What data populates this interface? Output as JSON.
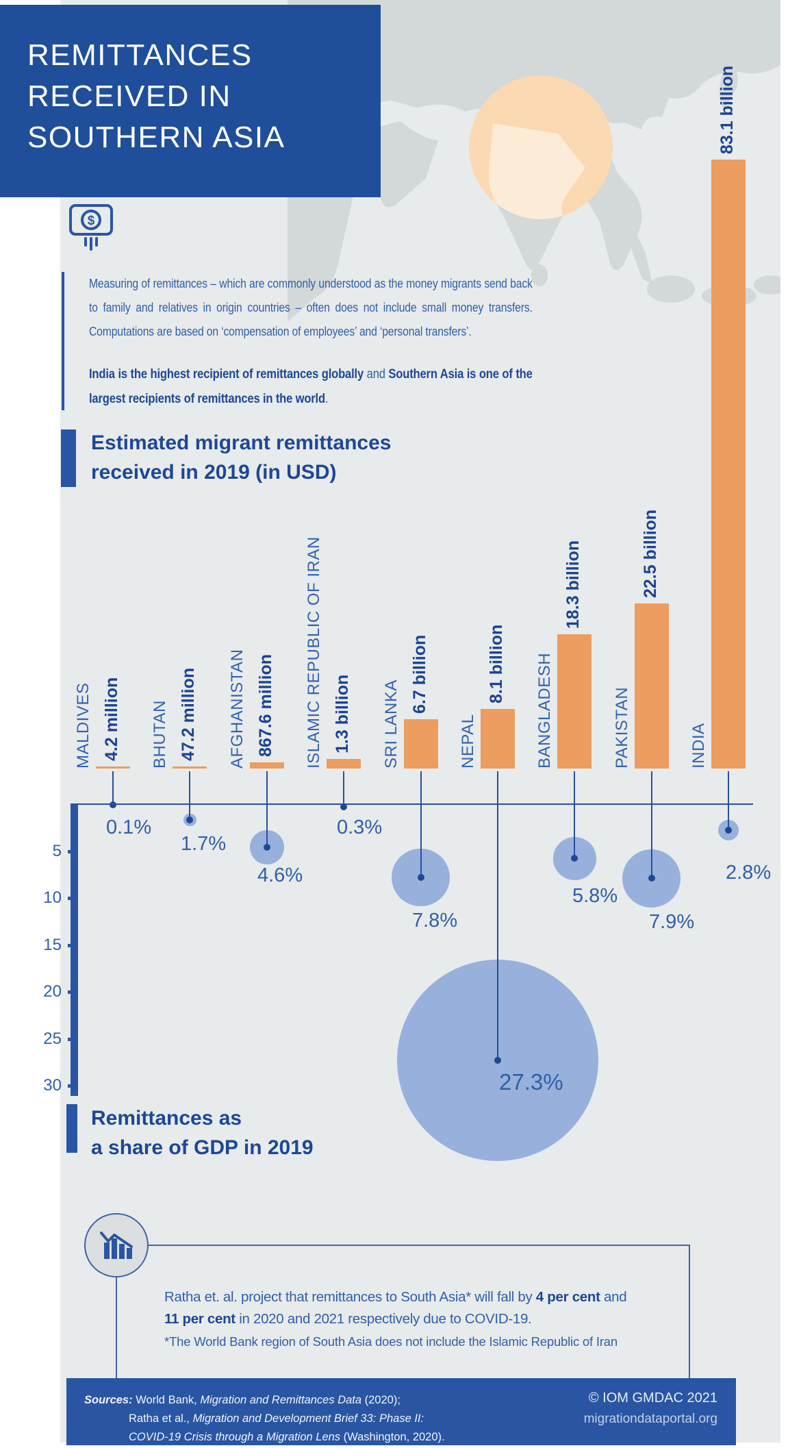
{
  "header": {
    "title_lines": [
      "REMITTANCES",
      "RECEIVED IN",
      "SOUTHERN ASIA"
    ]
  },
  "intro": {
    "p1_lines": [
      "Measuring of remittances – which are commonly understood as the money migrants send back",
      "to family and relatives in origin countries – often does not include small money transfers.",
      "Computations are based on ‘compensation of employees’ and ‘personal transfers’."
    ],
    "p2_lines": [
      [
        {
          "t": "India is the highest recipient of remittances globally",
          "b": true
        },
        {
          "t": " and ",
          "b": false
        },
        {
          "t": "Southern Asia is one of the",
          "b": true
        }
      ],
      [
        {
          "t": "largest recipients of remittances in the world",
          "b": true
        },
        {
          "t": ".",
          "b": false
        }
      ]
    ]
  },
  "sections": {
    "bar_title_lines": [
      "Estimated migrant remittances",
      "received in 2019 (in USD)"
    ],
    "gdp_title_lines": [
      "Remittances as",
      "a share of GDP in 2019"
    ]
  },
  "chart_data": [
    {
      "type": "bar",
      "title": "Estimated migrant remittances received in 2019 (in USD)",
      "categories": [
        "MALDIVES",
        "BHUTAN",
        "AFGHANISTAN",
        "ISLAMIC REPUBLIC OF IRAN",
        "SRI LANKA",
        "NEPAL",
        "BANGLADESH",
        "PAKISTAN",
        "INDIA"
      ],
      "value_labels": [
        "4.2 million",
        "47.2 million",
        "867.6 million",
        "1.3 billion",
        "6.7 billion",
        "8.1 billion",
        "18.3 billion",
        "22.5 billion",
        "83.1 billion"
      ],
      "values_usd_billions": [
        0.0042,
        0.0472,
        0.8676,
        1.3,
        6.7,
        8.1,
        18.3,
        22.5,
        83.1
      ],
      "bar_color": "#EC9D5F"
    },
    {
      "type": "bubble",
      "title": "Remittances as a share of GDP in 2019",
      "categories": [
        "MALDIVES",
        "BHUTAN",
        "AFGHANISTAN",
        "ISLAMIC REPUBLIC OF IRAN",
        "SRI LANKA",
        "NEPAL",
        "BANGLADESH",
        "PAKISTAN",
        "INDIA"
      ],
      "value_labels": [
        "0.1%",
        "1.7%",
        "4.6%",
        "0.3%",
        "7.8%",
        "27.3%",
        "5.8%",
        "7.9%",
        "2.8%"
      ],
      "values_percent": [
        0.1,
        1.7,
        4.6,
        0.3,
        7.8,
        27.3,
        5.8,
        7.9,
        2.8
      ],
      "axis_ticks": [
        5,
        10,
        15,
        20,
        25,
        30
      ],
      "ylim": [
        0,
        30
      ],
      "grid": false,
      "legend_position": "none",
      "bubble_color": "#97B1DC"
    }
  ],
  "callout": {
    "lines": [
      [
        {
          "t": "Ratha et. al. project that remittances to South Asia* will fall by ",
          "b": false
        },
        {
          "t": "4 per cent",
          "b": true
        },
        {
          "t": " and",
          "b": false
        }
      ],
      [
        {
          "t": "11 per cent",
          "b": true
        },
        {
          "t": " in 2020 and 2021 respectively due to COVID-19.",
          "b": false
        }
      ]
    ],
    "footnote": "*The World Bank region of South Asia does not include the Islamic Republic of Iran"
  },
  "footer": {
    "sources_lines": [
      [
        {
          "t": "Sources:",
          "s": "bi"
        },
        {
          "t": " World Bank, ",
          "s": ""
        },
        {
          "t": "Migration and Remittances Data",
          "s": "i"
        },
        {
          "t": " (2020);",
          "s": ""
        }
      ],
      [
        {
          "t": "Ratha et al., ",
          "s": ""
        },
        {
          "t": "Migration and Development Brief 33: Phase II:",
          "s": "i"
        }
      ],
      [
        {
          "t": "COVID-19 Crisis through a Migration Lens",
          "s": "i"
        },
        {
          "t": " (Washington, 2020).",
          "s": ""
        }
      ]
    ],
    "copyright": "© IOM GMDAC 2021",
    "website": "migrationdataportal.org"
  },
  "colors": {
    "header_bg": "#1F4E9B",
    "accent_blue": "#2A55A4",
    "body_text_blue": "#2F5FA9",
    "bold_text_blue": "#1D4796",
    "bar_orange": "#EC9D5F",
    "bubble_blue": "#97B1DC",
    "map_gray": "#D3D8D8",
    "map_highlight_peach": "#FBD9B2",
    "background_gray": "#E8EBEB",
    "footer_bg": "#2A55A3"
  }
}
